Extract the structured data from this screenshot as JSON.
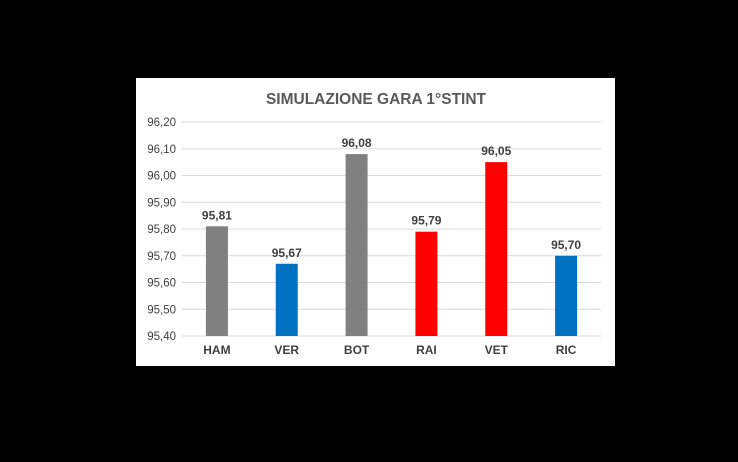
{
  "chart_data": {
    "type": "bar",
    "title": "SIMULAZIONE GARA 1°STINT",
    "xlabel": "",
    "ylabel": "",
    "categories": [
      "HAM",
      "VER",
      "BOT",
      "RAI",
      "VET",
      "RIC"
    ],
    "values": [
      95.81,
      95.67,
      96.08,
      95.79,
      96.05,
      95.7
    ],
    "value_labels": [
      "95,81",
      "95,67",
      "96,08",
      "95,79",
      "96,05",
      "95,70"
    ],
    "colors": [
      "#808080",
      "#0070c0",
      "#808080",
      "#ff0000",
      "#ff0000",
      "#0070c0"
    ],
    "ylim": [
      95.4,
      96.2
    ],
    "yticks": [
      95.4,
      95.5,
      95.6,
      95.7,
      95.8,
      95.9,
      96.0,
      96.1,
      96.2
    ],
    "ytick_labels": [
      "95,40",
      "95,50",
      "95,60",
      "95,70",
      "95,80",
      "95,90",
      "96,00",
      "96,10",
      "96,20"
    ],
    "grid": true,
    "legend": "none",
    "background": "#ffffff",
    "page_background": "#000000"
  }
}
